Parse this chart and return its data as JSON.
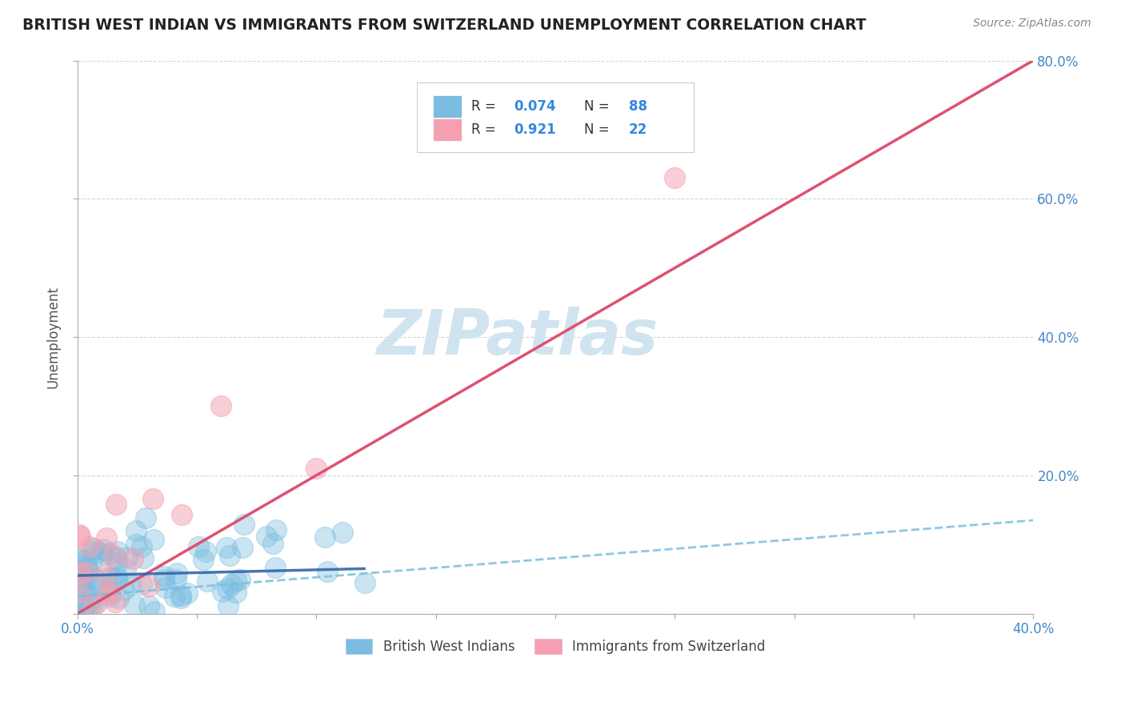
{
  "title": "BRITISH WEST INDIAN VS IMMIGRANTS FROM SWITZERLAND UNEMPLOYMENT CORRELATION CHART",
  "source_text": "Source: ZipAtlas.com",
  "ylabel": "Unemployment",
  "xlim": [
    0.0,
    0.4
  ],
  "ylim": [
    0.0,
    0.8
  ],
  "xtick_values": [
    0.0,
    0.05,
    0.1,
    0.15,
    0.2,
    0.25,
    0.3,
    0.35,
    0.4
  ],
  "xtick_labels_show": {
    "0.0": "0.0%",
    "0.4": "40.0%"
  },
  "ytick_values": [
    0.0,
    0.2,
    0.4,
    0.6,
    0.8
  ],
  "ytick_labels": [
    "",
    "20.0%",
    "40.0%",
    "60.0%",
    "80.0%"
  ],
  "legend_entries": [
    {
      "r": "0.074",
      "n": "88",
      "color": "#7bbde0"
    },
    {
      "r": "0.921",
      "n": "22",
      "color": "#f4a0b0"
    }
  ],
  "color_blue": "#7bbde0",
  "color_pink": "#f4a0b0",
  "color_trendline_blue": "#7bbde0",
  "color_trendline_red": "#e05070",
  "color_r_n": "#3388dd",
  "watermark": "ZIPatlas",
  "watermark_color": "#d0e4f0",
  "blue_trend_x": [
    0.0,
    0.4
  ],
  "blue_trend_y": [
    0.025,
    0.135
  ],
  "pink_trend_x": [
    0.0,
    0.4
  ],
  "pink_trend_y": [
    0.0,
    0.8
  ],
  "bottom_legend_labels": [
    "British West Indians",
    "Immigrants from Switzerland"
  ]
}
